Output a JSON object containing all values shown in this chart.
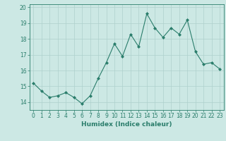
{
  "x": [
    0,
    1,
    2,
    3,
    4,
    5,
    6,
    7,
    8,
    9,
    10,
    11,
    12,
    13,
    14,
    15,
    16,
    17,
    18,
    19,
    20,
    21,
    22,
    23
  ],
  "y": [
    15.2,
    14.7,
    14.3,
    14.4,
    14.6,
    14.3,
    13.9,
    14.4,
    15.5,
    16.5,
    17.7,
    16.9,
    18.3,
    17.5,
    19.6,
    18.7,
    18.1,
    18.7,
    18.3,
    19.2,
    17.2,
    16.4,
    16.5,
    16.1
  ],
  "xlabel": "Humidex (Indice chaleur)",
  "ylim": [
    13.5,
    20.2
  ],
  "xlim": [
    -0.5,
    23.5
  ],
  "yticks": [
    14,
    15,
    16,
    17,
    18,
    19,
    20
  ],
  "xticks": [
    0,
    1,
    2,
    3,
    4,
    5,
    6,
    7,
    8,
    9,
    10,
    11,
    12,
    13,
    14,
    15,
    16,
    17,
    18,
    19,
    20,
    21,
    22,
    23
  ],
  "line_color": "#2a7d6b",
  "marker_color": "#2a7d6b",
  "bg_color": "#cce8e4",
  "grid_color": "#aed0cc",
  "axis_color": "#2a7d6b",
  "tick_label_color": "#2a7d6b",
  "xlabel_color": "#2a7d6b",
  "xlabel_fontsize": 6.5,
  "tick_fontsize": 5.5
}
